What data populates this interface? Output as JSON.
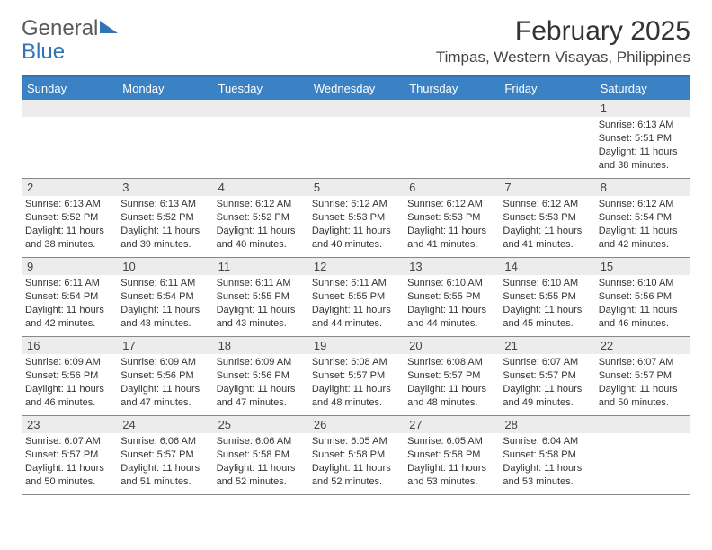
{
  "logo": {
    "text1": "General",
    "text2": "Blue"
  },
  "title": "February 2025",
  "location": "Timpas, Western Visayas, Philippines",
  "colors": {
    "header_bg": "#3a82c4",
    "header_text": "#ffffff",
    "daynum_bg": "#ececec",
    "border": "#888888",
    "accent": "#2f75b5",
    "text": "#333333"
  },
  "day_headers": [
    "Sunday",
    "Monday",
    "Tuesday",
    "Wednesday",
    "Thursday",
    "Friday",
    "Saturday"
  ],
  "weeks": [
    [
      {
        "n": "",
        "sr": "",
        "ss": "",
        "dl": ""
      },
      {
        "n": "",
        "sr": "",
        "ss": "",
        "dl": ""
      },
      {
        "n": "",
        "sr": "",
        "ss": "",
        "dl": ""
      },
      {
        "n": "",
        "sr": "",
        "ss": "",
        "dl": ""
      },
      {
        "n": "",
        "sr": "",
        "ss": "",
        "dl": ""
      },
      {
        "n": "",
        "sr": "",
        "ss": "",
        "dl": ""
      },
      {
        "n": "1",
        "sr": "Sunrise: 6:13 AM",
        "ss": "Sunset: 5:51 PM",
        "dl": "Daylight: 11 hours and 38 minutes."
      }
    ],
    [
      {
        "n": "2",
        "sr": "Sunrise: 6:13 AM",
        "ss": "Sunset: 5:52 PM",
        "dl": "Daylight: 11 hours and 38 minutes."
      },
      {
        "n": "3",
        "sr": "Sunrise: 6:13 AM",
        "ss": "Sunset: 5:52 PM",
        "dl": "Daylight: 11 hours and 39 minutes."
      },
      {
        "n": "4",
        "sr": "Sunrise: 6:12 AM",
        "ss": "Sunset: 5:52 PM",
        "dl": "Daylight: 11 hours and 40 minutes."
      },
      {
        "n": "5",
        "sr": "Sunrise: 6:12 AM",
        "ss": "Sunset: 5:53 PM",
        "dl": "Daylight: 11 hours and 40 minutes."
      },
      {
        "n": "6",
        "sr": "Sunrise: 6:12 AM",
        "ss": "Sunset: 5:53 PM",
        "dl": "Daylight: 11 hours and 41 minutes."
      },
      {
        "n": "7",
        "sr": "Sunrise: 6:12 AM",
        "ss": "Sunset: 5:53 PM",
        "dl": "Daylight: 11 hours and 41 minutes."
      },
      {
        "n": "8",
        "sr": "Sunrise: 6:12 AM",
        "ss": "Sunset: 5:54 PM",
        "dl": "Daylight: 11 hours and 42 minutes."
      }
    ],
    [
      {
        "n": "9",
        "sr": "Sunrise: 6:11 AM",
        "ss": "Sunset: 5:54 PM",
        "dl": "Daylight: 11 hours and 42 minutes."
      },
      {
        "n": "10",
        "sr": "Sunrise: 6:11 AM",
        "ss": "Sunset: 5:54 PM",
        "dl": "Daylight: 11 hours and 43 minutes."
      },
      {
        "n": "11",
        "sr": "Sunrise: 6:11 AM",
        "ss": "Sunset: 5:55 PM",
        "dl": "Daylight: 11 hours and 43 minutes."
      },
      {
        "n": "12",
        "sr": "Sunrise: 6:11 AM",
        "ss": "Sunset: 5:55 PM",
        "dl": "Daylight: 11 hours and 44 minutes."
      },
      {
        "n": "13",
        "sr": "Sunrise: 6:10 AM",
        "ss": "Sunset: 5:55 PM",
        "dl": "Daylight: 11 hours and 44 minutes."
      },
      {
        "n": "14",
        "sr": "Sunrise: 6:10 AM",
        "ss": "Sunset: 5:55 PM",
        "dl": "Daylight: 11 hours and 45 minutes."
      },
      {
        "n": "15",
        "sr": "Sunrise: 6:10 AM",
        "ss": "Sunset: 5:56 PM",
        "dl": "Daylight: 11 hours and 46 minutes."
      }
    ],
    [
      {
        "n": "16",
        "sr": "Sunrise: 6:09 AM",
        "ss": "Sunset: 5:56 PM",
        "dl": "Daylight: 11 hours and 46 minutes."
      },
      {
        "n": "17",
        "sr": "Sunrise: 6:09 AM",
        "ss": "Sunset: 5:56 PM",
        "dl": "Daylight: 11 hours and 47 minutes."
      },
      {
        "n": "18",
        "sr": "Sunrise: 6:09 AM",
        "ss": "Sunset: 5:56 PM",
        "dl": "Daylight: 11 hours and 47 minutes."
      },
      {
        "n": "19",
        "sr": "Sunrise: 6:08 AM",
        "ss": "Sunset: 5:57 PM",
        "dl": "Daylight: 11 hours and 48 minutes."
      },
      {
        "n": "20",
        "sr": "Sunrise: 6:08 AM",
        "ss": "Sunset: 5:57 PM",
        "dl": "Daylight: 11 hours and 48 minutes."
      },
      {
        "n": "21",
        "sr": "Sunrise: 6:07 AM",
        "ss": "Sunset: 5:57 PM",
        "dl": "Daylight: 11 hours and 49 minutes."
      },
      {
        "n": "22",
        "sr": "Sunrise: 6:07 AM",
        "ss": "Sunset: 5:57 PM",
        "dl": "Daylight: 11 hours and 50 minutes."
      }
    ],
    [
      {
        "n": "23",
        "sr": "Sunrise: 6:07 AM",
        "ss": "Sunset: 5:57 PM",
        "dl": "Daylight: 11 hours and 50 minutes."
      },
      {
        "n": "24",
        "sr": "Sunrise: 6:06 AM",
        "ss": "Sunset: 5:57 PM",
        "dl": "Daylight: 11 hours and 51 minutes."
      },
      {
        "n": "25",
        "sr": "Sunrise: 6:06 AM",
        "ss": "Sunset: 5:58 PM",
        "dl": "Daylight: 11 hours and 52 minutes."
      },
      {
        "n": "26",
        "sr": "Sunrise: 6:05 AM",
        "ss": "Sunset: 5:58 PM",
        "dl": "Daylight: 11 hours and 52 minutes."
      },
      {
        "n": "27",
        "sr": "Sunrise: 6:05 AM",
        "ss": "Sunset: 5:58 PM",
        "dl": "Daylight: 11 hours and 53 minutes."
      },
      {
        "n": "28",
        "sr": "Sunrise: 6:04 AM",
        "ss": "Sunset: 5:58 PM",
        "dl": "Daylight: 11 hours and 53 minutes."
      },
      {
        "n": "",
        "sr": "",
        "ss": "",
        "dl": ""
      }
    ]
  ]
}
